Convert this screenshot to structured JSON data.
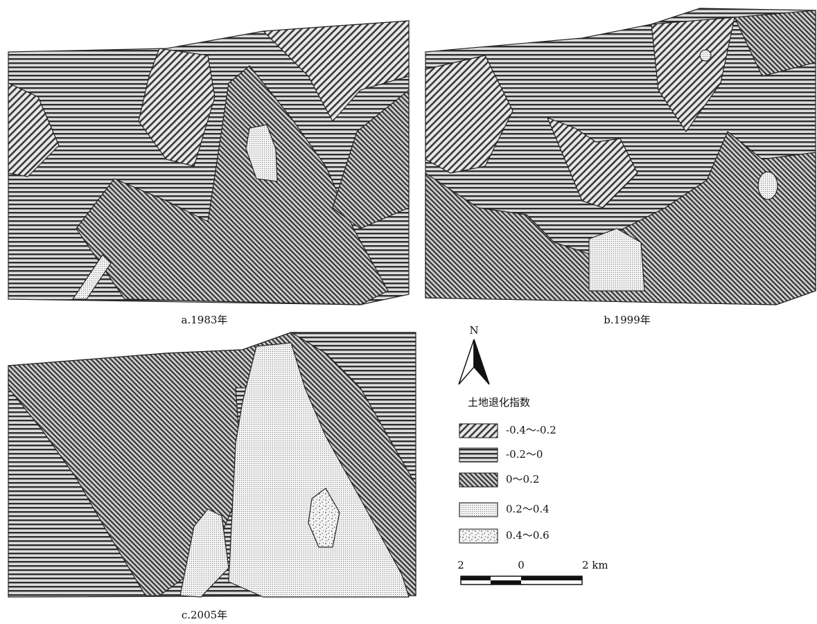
{
  "panels": [
    {
      "label": "a.1983年"
    },
    {
      "label": "b.1999年"
    },
    {
      "label": "c.2005年"
    }
  ],
  "north": "N",
  "legend": {
    "title": "土地退化指数",
    "items": [
      "-0.4～-0.2",
      "-0.2～0",
      "0～0.2",
      "0.2～0.4",
      "0.4～0.6"
    ]
  },
  "scale_bar": {
    "labels": [
      "2",
      "0",
      "2 km"
    ]
  }
}
